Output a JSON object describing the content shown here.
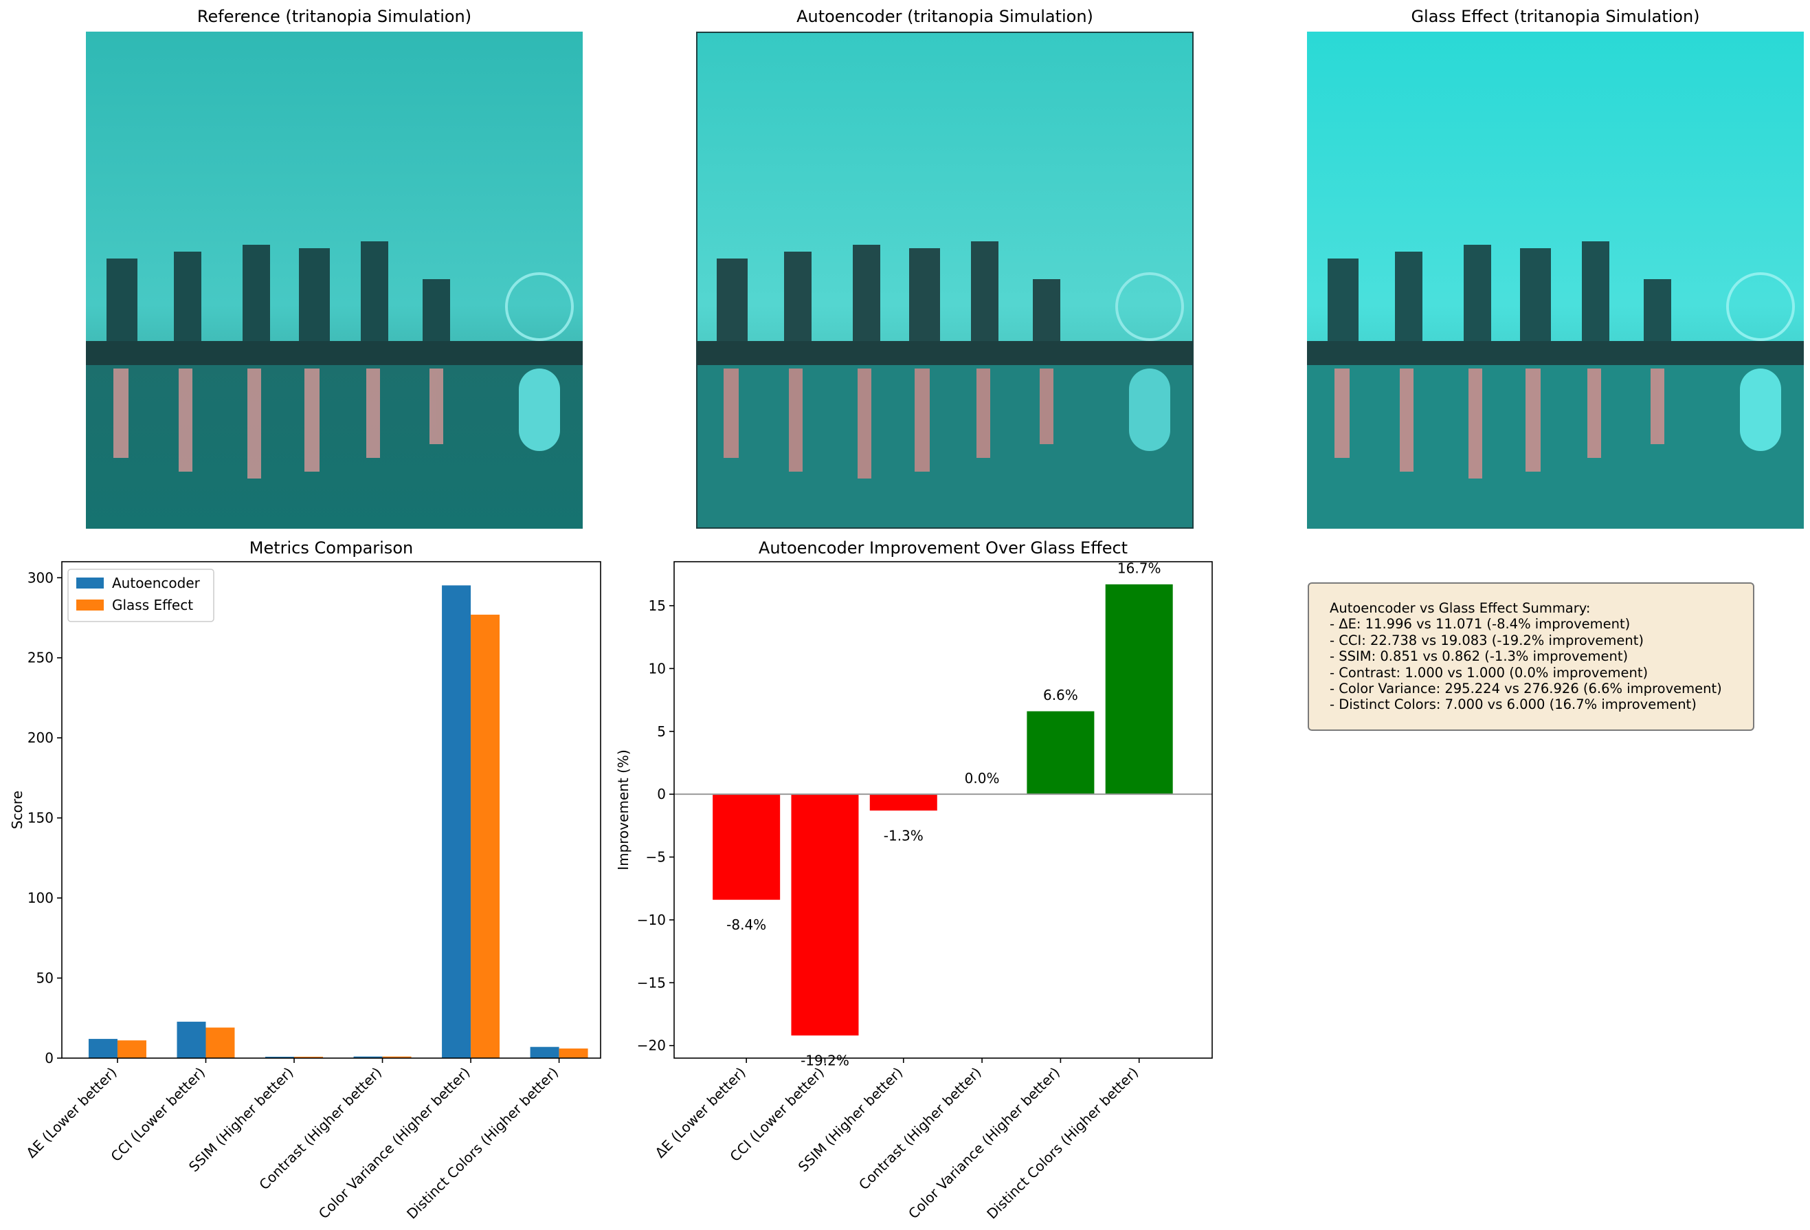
{
  "panels": {
    "reference_title": "Reference (tritanopia Simulation)",
    "autoencoder_title": "Autoencoder (tritanopia Simulation)",
    "glass_title": "Glass Effect (tritanopia Simulation)"
  },
  "colors": {
    "autoencoder": "#1f77b4",
    "glass": "#ff7f0e",
    "negative": "#ff0000",
    "positive": "#008000",
    "summary_bg": "#f7ebd6"
  },
  "chart_data": [
    {
      "type": "bar",
      "title": "Metrics Comparison",
      "xlabel": "",
      "ylabel": "Score",
      "categories": [
        "ΔE (Lower better)",
        "CCI (Lower better)",
        "SSIM (Higher better)",
        "Contrast (Higher better)",
        "Color Variance (Higher better)",
        "Distinct Colors (Higher better)"
      ],
      "series": [
        {
          "name": "Autoencoder",
          "values": [
            11.996,
            22.738,
            0.851,
            1.0,
            295.224,
            7.0
          ]
        },
        {
          "name": "Glass Effect",
          "values": [
            11.071,
            19.083,
            0.862,
            1.0,
            276.926,
            6.0
          ]
        }
      ],
      "ylim": [
        0,
        310
      ],
      "yticks": [
        0,
        50,
        100,
        150,
        200,
        250,
        300
      ],
      "legend": "top-left",
      "grid": false
    },
    {
      "type": "bar",
      "title": "Autoencoder Improvement Over Glass Effect",
      "xlabel": "",
      "ylabel": "Improvement (%)",
      "categories": [
        "ΔE (Lower better)",
        "CCI (Lower better)",
        "SSIM (Higher better)",
        "Contrast (Higher better)",
        "Color Variance (Higher better)",
        "Distinct Colors (Higher better)"
      ],
      "values": [
        -8.4,
        -19.2,
        -1.3,
        0.0,
        6.6,
        16.7
      ],
      "labels": [
        "-8.4%",
        "-19.2%",
        "-1.3%",
        "0.0%",
        "6.6%",
        "16.7%"
      ],
      "ylim": [
        -21,
        18.5
      ],
      "yticks": [
        -20,
        -15,
        -10,
        -5,
        0,
        5,
        10,
        15
      ],
      "grid": false
    }
  ],
  "summary": {
    "title": "Autoencoder vs Glass Effect Summary:",
    "lines": [
      "- ΔE: 11.996 vs 11.071 (-8.4% improvement)",
      "- CCI: 22.738 vs 19.083 (-19.2% improvement)",
      "- SSIM: 0.851 vs 0.862 (-1.3% improvement)",
      "- Contrast: 1.000 vs 1.000 (0.0% improvement)",
      "- Color Variance: 295.224 vs 276.926 (6.6% improvement)",
      "- Distinct Colors: 7.000 vs 6.000 (16.7% improvement)"
    ]
  }
}
